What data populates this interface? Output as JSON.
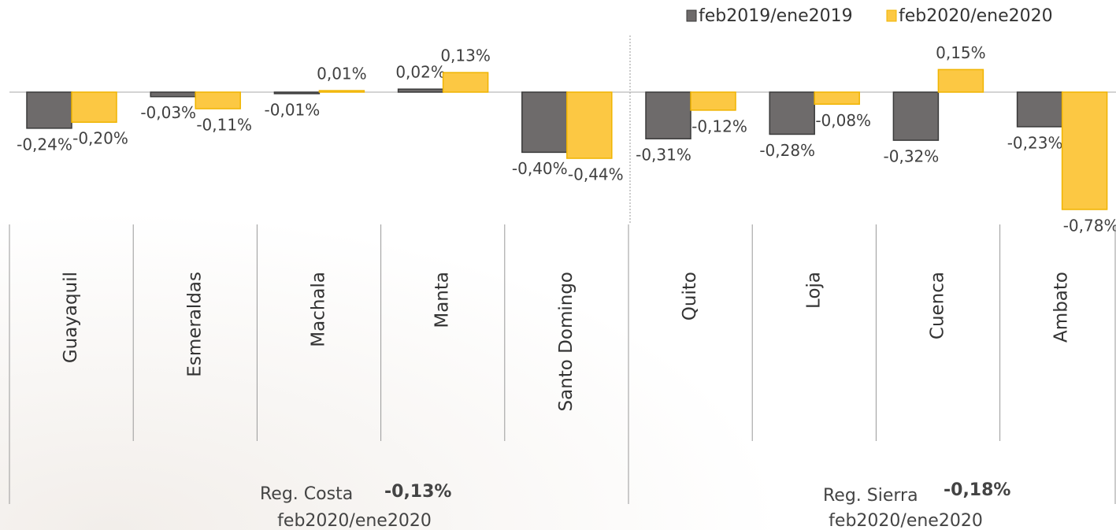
{
  "chart_data": {
    "type": "bar",
    "categories": [
      "Guayaquil",
      "Esmeraldas",
      "Machala",
      "Manta",
      "Santo Domingo",
      "Quito",
      "Loja",
      "Cuenca",
      "Ambato"
    ],
    "series": [
      {
        "name": "feb2019/ene2019",
        "color": "#6e6b6b",
        "values": [
          -0.24,
          -0.03,
          -0.01,
          0.02,
          -0.4,
          -0.31,
          -0.28,
          -0.32,
          -0.23
        ],
        "value_labels": [
          "-0,24%",
          "-0,03%",
          "-0,01%",
          "0,02%",
          "-0,40%",
          "-0,31%",
          "-0,28%",
          "-0,32%",
          "-0,23%"
        ]
      },
      {
        "name": "feb2020/ene2020",
        "color": "#fcc843",
        "values": [
          -0.2,
          -0.11,
          0.01,
          0.13,
          -0.44,
          -0.12,
          -0.08,
          0.15,
          -0.78
        ],
        "value_labels": [
          "-0,20%",
          "-0,11%",
          "0,01%",
          "0,13%",
          "-0,44%",
          "-0,12%",
          "-0,08%",
          "0,15%",
          "-0,78%"
        ]
      }
    ],
    "ylim": [
      -0.9,
      0.4
    ],
    "legend": "top-right",
    "annotations": [
      {
        "name": "Reg. Costa",
        "value_label": "-0,13%",
        "period": "feb2020/ene2020"
      },
      {
        "name": "Reg. Sierra",
        "value_label": "-0,18%",
        "period": "feb2020/ene2020"
      }
    ]
  }
}
